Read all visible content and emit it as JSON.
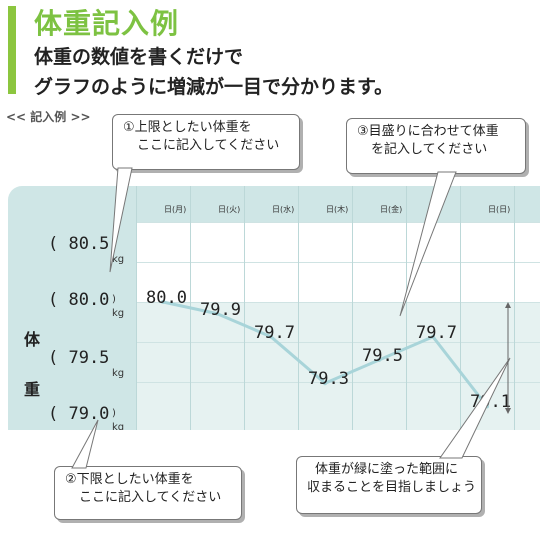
{
  "header": {
    "title": "体重記入例",
    "line1": "体重の数値を書くだけで",
    "line2": "グラフのように増減が一目で分かります。"
  },
  "example_label": "<< 記入例 >>",
  "callouts": {
    "upper_limit": {
      "line1": "①上限としたい体重を",
      "line2": "ここに記入してください"
    },
    "scale": {
      "line1": "③目盛りに合わせて体重",
      "line2": "を記入してください"
    },
    "lower_limit": {
      "line1": "②下限としたい体重を",
      "line2": "ここに記入してください"
    },
    "goal": {
      "line1": "体重が緑に塗った範囲に",
      "line2": "収まることを目指しましょう"
    }
  },
  "y_axis": {
    "label": [
      "体",
      "重"
    ],
    "values": [
      "( 80.5",
      "( 80.0",
      "( 79.5",
      "( 79.0"
    ],
    "close": ")",
    "unit": "kg"
  },
  "days": [
    "日(月)",
    "日(火)",
    "日(水)",
    "日(木)",
    "日(金)",
    "",
    "日(日)"
  ],
  "chart_data": {
    "type": "line",
    "categories": [
      "日(月)",
      "日(火)",
      "日(水)",
      "日(木)",
      "日(金)",
      "",
      "日(日)"
    ],
    "series": [
      {
        "values": [
          80.0,
          79.9,
          79.7,
          79.3,
          79.5,
          79.7,
          79.1
        ]
      }
    ],
    "labels": [
      "80.0",
      "79.9",
      "79.7",
      "79.3",
      "79.5",
      "79.7",
      "79.1"
    ],
    "ylim": [
      79.0,
      80.5
    ],
    "yticks": [
      80.5,
      80.0,
      79.5,
      79.0
    ],
    "ylabel": "体重",
    "band": [
      79.0,
      80.0
    ],
    "colors": {
      "line": "#a8d4d9",
      "band": "#e6f2f1",
      "header": "#cfe6e6"
    }
  }
}
